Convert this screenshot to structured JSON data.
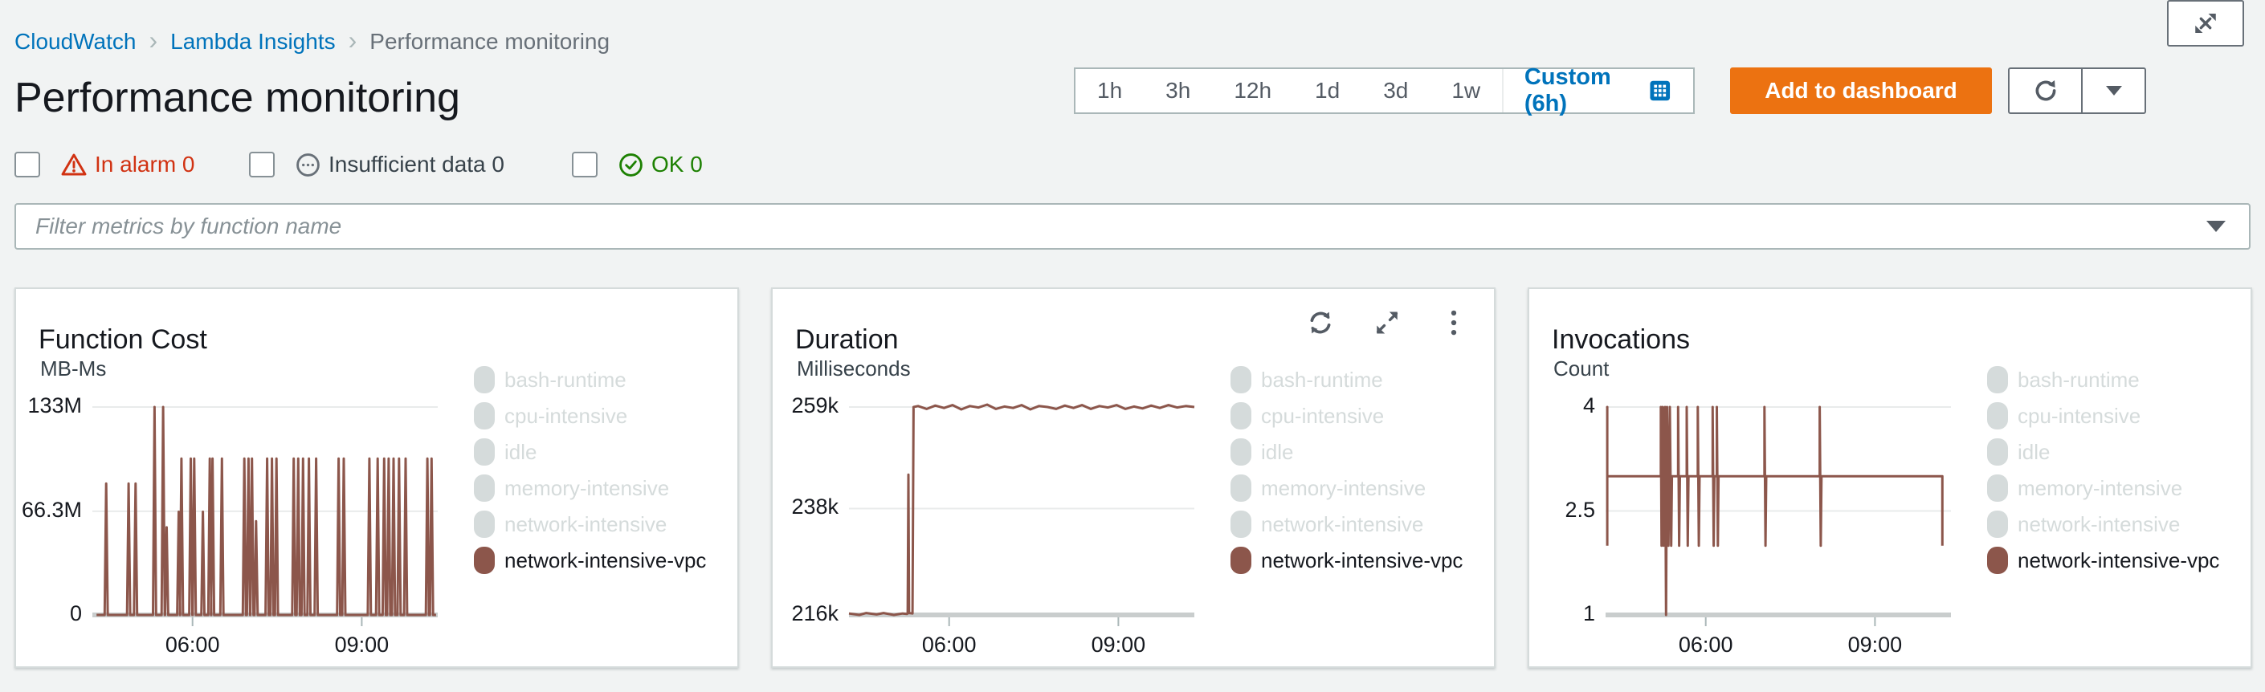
{
  "breadcrumb": {
    "separator": "›",
    "items": [
      {
        "label": "CloudWatch",
        "link": true
      },
      {
        "label": "Lambda Insights",
        "link": true
      },
      {
        "label": "Performance monitoring",
        "link": false
      }
    ]
  },
  "page": {
    "title": "Performance monitoring"
  },
  "alarm_filters": [
    {
      "label": "In alarm",
      "count": "0",
      "color": "#d13212",
      "icon": "alarm-triangle-icon"
    },
    {
      "label": "Insufficient data",
      "count": "0",
      "color": "#545b64",
      "icon": "insufficient-data-icon"
    },
    {
      "label": "OK",
      "count": "0",
      "color": "#1d8102",
      "icon": "ok-check-icon"
    }
  ],
  "time_range": {
    "options": [
      "1h",
      "3h",
      "12h",
      "1d",
      "3d",
      "1w"
    ],
    "custom_label": "Custom (6h)",
    "custom_color": "#0073bb"
  },
  "header_actions": {
    "add_to_dashboard_label": "Add to dashboard",
    "button_color": "#ec7211"
  },
  "filter": {
    "placeholder": "Filter metrics by function name"
  },
  "legend": {
    "inactive_color": "#d5dbdb",
    "active_color": "#8c564b",
    "items": [
      {
        "label": "bash-runtime",
        "active": false
      },
      {
        "label": "cpu-intensive",
        "active": false
      },
      {
        "label": "idle",
        "active": false
      },
      {
        "label": "memory-intensive",
        "active": false
      },
      {
        "label": "network-intensive",
        "active": false
      },
      {
        "label": "network-intensive-vpc",
        "active": true
      }
    ]
  },
  "chart_data": [
    {
      "id": "function-cost",
      "type": "line",
      "title": "Function Cost",
      "ylabel": "MB-Ms",
      "series_name": "network-intensive-vpc",
      "line_color": "#8c564b",
      "ylim": [
        0,
        133
      ],
      "value_scale": "millions of MB-Ms",
      "yticks": [
        {
          "value": 133,
          "label": "133M"
        },
        {
          "value": 66.3,
          "label": "66.3M"
        },
        {
          "value": 0,
          "label": "0"
        }
      ],
      "xticks": [
        {
          "f": 0.29,
          "label": "06:00"
        },
        {
          "f": 0.78,
          "label": "09:00"
        }
      ],
      "grid": true,
      "legend_position": "right",
      "spikes": [
        [
          0.04,
          84
        ],
        [
          0.105,
          84
        ],
        [
          0.125,
          84
        ],
        [
          0.18,
          133
        ],
        [
          0.205,
          133
        ],
        [
          0.215,
          56
        ],
        [
          0.25,
          66
        ],
        [
          0.258,
          100
        ],
        [
          0.285,
          100
        ],
        [
          0.295,
          100
        ],
        [
          0.32,
          66
        ],
        [
          0.34,
          100
        ],
        [
          0.348,
          100
        ],
        [
          0.375,
          100
        ],
        [
          0.44,
          100
        ],
        [
          0.452,
          100
        ],
        [
          0.462,
          100
        ],
        [
          0.474,
          60
        ],
        [
          0.506,
          100
        ],
        [
          0.52,
          100
        ],
        [
          0.533,
          100
        ],
        [
          0.583,
          100
        ],
        [
          0.596,
          100
        ],
        [
          0.61,
          100
        ],
        [
          0.627,
          100
        ],
        [
          0.648,
          100
        ],
        [
          0.713,
          100
        ],
        [
          0.728,
          100
        ],
        [
          0.802,
          100
        ],
        [
          0.826,
          100
        ],
        [
          0.845,
          100
        ],
        [
          0.858,
          100
        ],
        [
          0.872,
          100
        ],
        [
          0.888,
          100
        ],
        [
          0.907,
          100
        ],
        [
          0.97,
          100
        ],
        [
          0.982,
          100
        ]
      ]
    },
    {
      "id": "duration",
      "type": "line",
      "title": "Duration",
      "ylabel": "Milliseconds",
      "series_name": "network-intensive-vpc",
      "line_color": "#8c564b",
      "ylim": [
        216,
        259
      ],
      "value_scale": "thousands of milliseconds",
      "yticks": [
        {
          "value": 259,
          "label": "259k"
        },
        {
          "value": 238,
          "label": "238k"
        },
        {
          "value": 216,
          "label": "216k"
        }
      ],
      "xticks": [
        {
          "f": 0.29,
          "label": "06:00"
        },
        {
          "f": 0.78,
          "label": "09:00"
        }
      ],
      "grid": true,
      "legend_position": "right",
      "points": [
        [
          0,
          216.3
        ],
        [
          0.03,
          216
        ],
        [
          0.05,
          216.4
        ],
        [
          0.08,
          216.1
        ],
        [
          0.1,
          216.4
        ],
        [
          0.13,
          216
        ],
        [
          0.155,
          216.3
        ],
        [
          0.168,
          216.2
        ],
        [
          0.17,
          216.3
        ],
        [
          0.172,
          245
        ],
        [
          0.174,
          216.4
        ],
        [
          0.184,
          216.3
        ],
        [
          0.187,
          259
        ],
        [
          0.2,
          259.2
        ],
        [
          0.225,
          258.6
        ],
        [
          0.25,
          259.3
        ],
        [
          0.275,
          258.8
        ],
        [
          0.3,
          259.4
        ],
        [
          0.325,
          258.5
        ],
        [
          0.35,
          259.2
        ],
        [
          0.375,
          258.9
        ],
        [
          0.4,
          259.5
        ],
        [
          0.425,
          258.6
        ],
        [
          0.45,
          259.1
        ],
        [
          0.475,
          258.8
        ],
        [
          0.5,
          259.4
        ],
        [
          0.525,
          258.5
        ],
        [
          0.55,
          259.2
        ],
        [
          0.575,
          259
        ],
        [
          0.6,
          258.6
        ],
        [
          0.625,
          259.3
        ],
        [
          0.65,
          258.8
        ],
        [
          0.675,
          259.4
        ],
        [
          0.7,
          258.6
        ],
        [
          0.725,
          259.2
        ],
        [
          0.75,
          258.9
        ],
        [
          0.775,
          259.4
        ],
        [
          0.8,
          258.6
        ],
        [
          0.825,
          259.1
        ],
        [
          0.85,
          258.7
        ],
        [
          0.875,
          259.3
        ],
        [
          0.9,
          258.8
        ],
        [
          0.925,
          259.4
        ],
        [
          0.95,
          258.9
        ],
        [
          0.975,
          259.2
        ],
        [
          1,
          259
        ]
      ]
    },
    {
      "id": "invocations",
      "type": "line",
      "title": "Invocations",
      "ylabel": "Count",
      "series_name": "network-intensive-vpc",
      "line_color": "#8c564b",
      "ylim": [
        1,
        4
      ],
      "value_scale": "count",
      "yticks": [
        {
          "value": 4,
          "label": "4"
        },
        {
          "value": 2.5,
          "label": "2.5"
        },
        {
          "value": 1,
          "label": "1"
        }
      ],
      "xticks": [
        {
          "f": 0.29,
          "label": "06:00"
        },
        {
          "f": 0.78,
          "label": "09:00"
        }
      ],
      "grid": true,
      "legend_position": "right",
      "points": [
        [
          0.005,
          2
        ],
        [
          0.005,
          4
        ],
        [
          0.005,
          3
        ],
        [
          0.16,
          3
        ],
        [
          0.16,
          4
        ],
        [
          0.162,
          2
        ],
        [
          0.165,
          4
        ],
        [
          0.168,
          2
        ],
        [
          0.172,
          4
        ],
        [
          0.175,
          1
        ],
        [
          0.178,
          4
        ],
        [
          0.182,
          2
        ],
        [
          0.186,
          4
        ],
        [
          0.19,
          2
        ],
        [
          0.192,
          3
        ],
        [
          0.21,
          3
        ],
        [
          0.21,
          4
        ],
        [
          0.213,
          2
        ],
        [
          0.215,
          3
        ],
        [
          0.235,
          3
        ],
        [
          0.235,
          4
        ],
        [
          0.238,
          2
        ],
        [
          0.24,
          3
        ],
        [
          0.267,
          3
        ],
        [
          0.267,
          4
        ],
        [
          0.27,
          2
        ],
        [
          0.272,
          3
        ],
        [
          0.31,
          3
        ],
        [
          0.31,
          4
        ],
        [
          0.313,
          2
        ],
        [
          0.315,
          3
        ],
        [
          0.322,
          3
        ],
        [
          0.322,
          4
        ],
        [
          0.325,
          2
        ],
        [
          0.327,
          3
        ],
        [
          0.46,
          3
        ],
        [
          0.46,
          4
        ],
        [
          0.463,
          2
        ],
        [
          0.465,
          3
        ],
        [
          0.62,
          3
        ],
        [
          0.62,
          4
        ],
        [
          0.623,
          2
        ],
        [
          0.625,
          3
        ],
        [
          0.975,
          3
        ],
        [
          0.975,
          2
        ]
      ]
    }
  ]
}
